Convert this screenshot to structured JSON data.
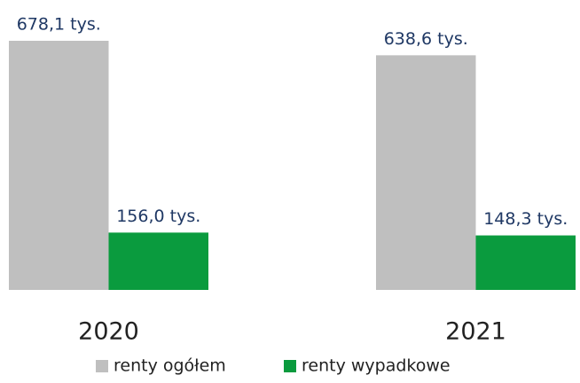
{
  "chart_data": {
    "type": "bar",
    "categories": [
      "2020",
      "2021"
    ],
    "series": [
      {
        "name": "renty ogółem",
        "color": "#bfbfbf",
        "values": [
          678.1,
          638.6
        ],
        "value_labels": [
          "678,1 tys.",
          "638,6 tys."
        ]
      },
      {
        "name": "renty wypadkowe",
        "color": "#0a9b3e",
        "values": [
          156.0,
          148.3
        ],
        "value_labels": [
          "156,0 tys.",
          "148,3 tys."
        ]
      }
    ]
  }
}
